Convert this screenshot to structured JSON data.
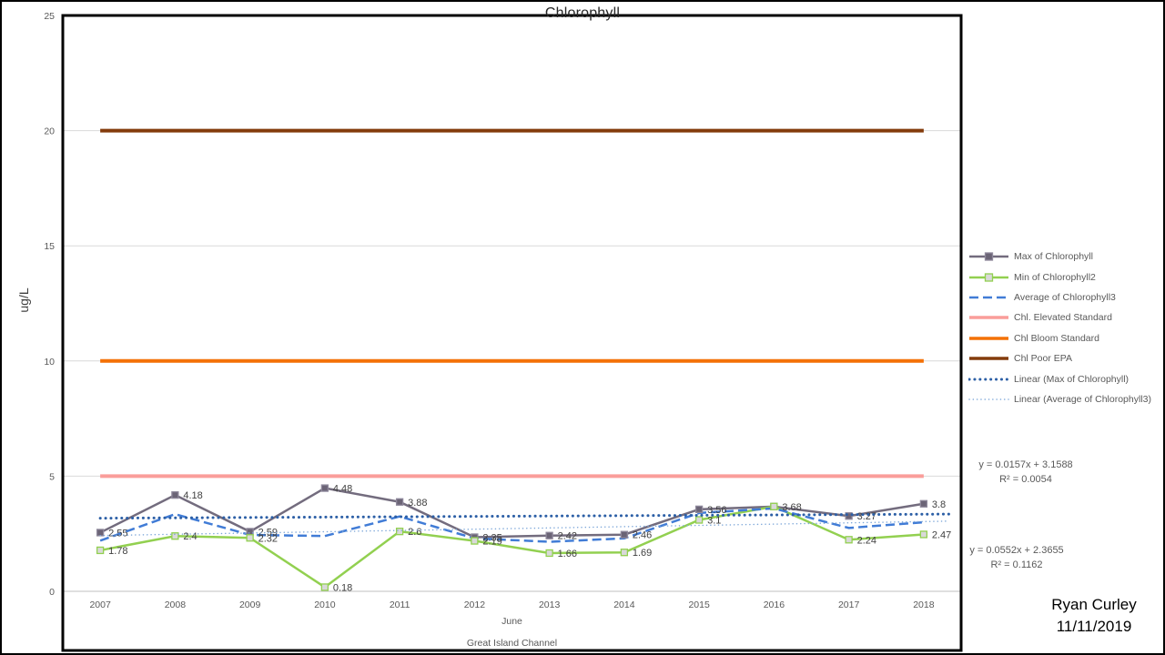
{
  "credit": {
    "name": "Ryan Curley",
    "date": "11/11/2019"
  },
  "chart_data": {
    "type": "line",
    "title": "Chlorophyll",
    "ylabel": "ug/L",
    "xlabel": "June",
    "xlabel2": "Great Island Channel",
    "ylim": [
      0,
      25
    ],
    "yticks": [
      0,
      5,
      10,
      15,
      20,
      25
    ],
    "grid": "horizontal",
    "legend_position": "right",
    "categories": [
      "2007",
      "2008",
      "2009",
      "2010",
      "2011",
      "2012",
      "2013",
      "2014",
      "2015",
      "2016",
      "2017",
      "2018"
    ],
    "series": [
      {
        "name": "Max of Chlorophyll",
        "kind": "data",
        "color": "#736C7E",
        "marker_fill": "#6B6476",
        "marker_stroke": "#8E889B",
        "values": [
          2.55,
          4.18,
          2.59,
          4.48,
          3.88,
          2.35,
          2.42,
          2.46,
          3.56,
          3.68,
          3.27,
          3.8
        ],
        "labels": [
          "2.55",
          "4.18",
          "2.59",
          "4.48",
          "3.88",
          "2.35",
          "2.42",
          "2.46",
          "3.56",
          "3.68",
          "3.27",
          "3.8"
        ]
      },
      {
        "name": "Min of Chlorophyll2",
        "kind": "data",
        "color": "#92D050",
        "marker_fill": "#D9D9D9",
        "marker_stroke": "#92D050",
        "values": [
          1.78,
          2.4,
          2.32,
          0.18,
          2.6,
          2.19,
          1.66,
          1.69,
          3.1,
          3.68,
          2.24,
          2.47
        ],
        "labels": [
          "1.78",
          "2.4",
          "2.32",
          "0.18",
          "2.6",
          "2.19",
          "1.66",
          "1.69",
          "3.1",
          null,
          "2.24",
          "2.47"
        ]
      },
      {
        "name": "Average of Chlorophyll3",
        "kind": "data",
        "color": "#417CD6",
        "dash": "dashed",
        "values": [
          2.2,
          3.35,
          2.45,
          2.4,
          3.25,
          2.3,
          2.15,
          2.3,
          3.4,
          3.6,
          2.75,
          3.0
        ],
        "labels": null
      },
      {
        "name": "Chl. Elevated Standard",
        "kind": "constant",
        "color": "#FA9D9A",
        "constant": 5
      },
      {
        "name": "Chl Bloom Standard",
        "kind": "constant",
        "color": "#F47106",
        "constant": 10
      },
      {
        "name": "Chl Poor EPA",
        "kind": "constant",
        "color": "#843C0C",
        "constant": 20
      },
      {
        "name": "Linear (Max of Chlorophyll)",
        "kind": "trend",
        "color": "#2C5FA6",
        "dash": "dotted-bold",
        "trend": {
          "slope": 0.0157,
          "intercept": 3.1588
        }
      },
      {
        "name": "Linear (Average of Chlorophyll3)",
        "kind": "trend",
        "color": "#7DA7D9",
        "dash": "dotted-fine",
        "trend": {
          "slope": 0.0552,
          "intercept": 2.3655
        }
      }
    ],
    "annotations": [
      {
        "text": "y = 0.0157x + 3.1588",
        "text2": "R² = 0.0054"
      },
      {
        "text": "y = 0.0552x + 2.3655",
        "text2": "R² = 0.1162"
      }
    ]
  }
}
